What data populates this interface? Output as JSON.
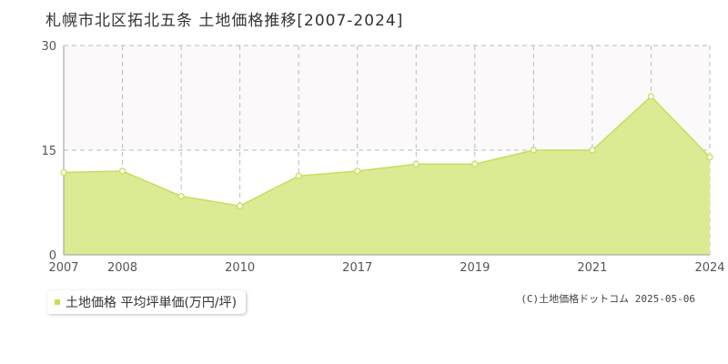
{
  "title": "札幌市北区拓北五条 土地価格推移[2007-2024]",
  "legend_label": "土地価格 平均坪単価(万円/坪)",
  "copyright": "(C)土地価格ドットコム 2025-05-06",
  "colors": {
    "fill": "#dbeb93",
    "line": "#c5df5a",
    "marker_fill": "#ffffff",
    "grid": "#bbbbbb",
    "upper_band": "#fbf9fa"
  },
  "chart_data": {
    "type": "area",
    "x": [
      2007,
      2008,
      2009,
      2010,
      2011,
      2017,
      2018,
      2019,
      2020,
      2021,
      2022,
      2024
    ],
    "series": [
      {
        "values": [
          11.8,
          12.0,
          8.4,
          7.0,
          11.3,
          12.0,
          13.0,
          13.0,
          15.0,
          15.0,
          22.7,
          14.0
        ]
      }
    ],
    "x_tick_labels": [
      "2007",
      "2008",
      "2010",
      "2017",
      "2019",
      "2021",
      "2024"
    ],
    "y_ticks": [
      0,
      15,
      30
    ],
    "ylim": [
      0,
      30
    ],
    "grid": true
  }
}
